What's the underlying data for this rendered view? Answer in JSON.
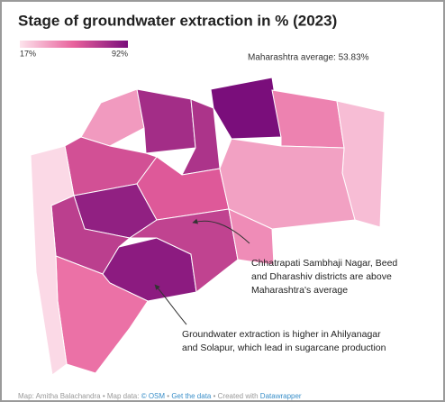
{
  "title": "Stage of groundwater extraction in % (2023)",
  "legend": {
    "min": {
      "value": 17,
      "label": "17%"
    },
    "max": {
      "value": 92,
      "label": "92%"
    }
  },
  "average_note": "Maharashtra average: 53.83%",
  "districts": [
    {
      "value": 38
    },
    {
      "value": 78
    },
    {
      "value": 75
    },
    {
      "value": 92
    },
    {
      "value": 45
    },
    {
      "value": 28
    },
    {
      "value": 62
    },
    {
      "value": 84
    },
    {
      "value": 70
    },
    {
      "value": 58
    },
    {
      "value": 36
    },
    {
      "value": 86
    },
    {
      "value": 68
    },
    {
      "value": 42
    },
    {
      "value": 50
    },
    {
      "value": 20
    }
  ],
  "annotations": [
    {
      "lines": [
        "Chhatrapati Sambhaji Nagar, Beed",
        "and Dharashiv districts are above",
        "Maharashtra's average"
      ]
    },
    {
      "lines": [
        "Groundwater extraction is higher in Ahilyanagar",
        "and Solapur, which lead in sugarcane production"
      ]
    }
  ],
  "footer": {
    "credit": "Map: Amitha Balachandra",
    "separator": "•",
    "source_label": "Map data:",
    "source": "© OSM",
    "data_link": "Get the data",
    "tool_label": "Created with",
    "tool": "Datawrapper"
  }
}
